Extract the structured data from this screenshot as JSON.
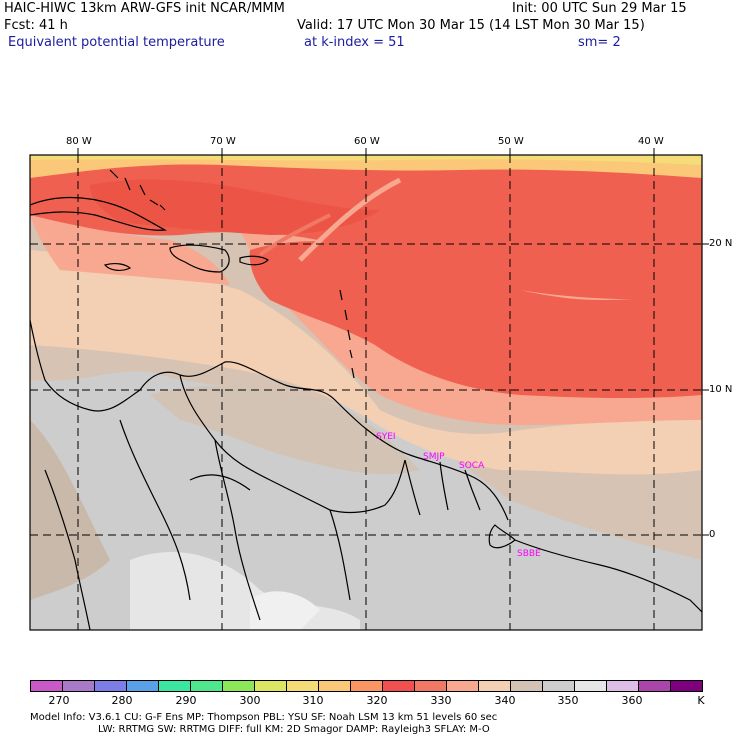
{
  "header": {
    "title": "HAIC-HIWC 13km ARW-GFS init    NCAR/MMM",
    "init": "Init: 00 UTC Sun 29 Mar 15",
    "fcst": "Fcst:    41 h",
    "valid": "Valid: 17 UTC Mon 30 Mar 15 (14 LST Mon 30 Mar 15)",
    "field": "Equivalent potential temperature",
    "level": "at k-index =  51",
    "smooth": "sm= 2"
  },
  "map": {
    "lon_labels": [
      "80 W",
      "70 W",
      "60 W",
      "50 W",
      "40 W"
    ],
    "lat_labels": [
      "20 N",
      "10 N",
      "0"
    ],
    "stations": [
      "SYEI",
      "SMJP",
      "SOCA",
      "SBBE"
    ]
  },
  "colorbar": {
    "labels": [
      "270",
      "280",
      "290",
      "300",
      "310",
      "320",
      "330",
      "340",
      "350",
      "360",
      "K"
    ],
    "colors": [
      "#c85ac8",
      "#a87ac8",
      "#7d7de6",
      "#5aa0e6",
      "#3ce6a0",
      "#50e68c",
      "#8ce65a",
      "#dce664",
      "#f5dc78",
      "#fac878",
      "#fa9664",
      "#f05050",
      "#f07864",
      "#f8a890",
      "#f3cfb4",
      "#d2c3b4",
      "#cdcdcd",
      "#e6e6e6",
      "#dcbee6",
      "#aa46aa",
      "#7d007d"
    ]
  },
  "footer": {
    "line1": "Model Info: V3.6.1      CU: G-F Ens  MP: Thompson      PBL: YSU       SF: Noah LSM      13 km    51 levels     60 sec",
    "line2": "LW: RRTMG      SW: RRTMG   DIFF: full    KM: 2D Smagor  DAMP: Rayleigh3   SFLAY: M-O"
  }
}
